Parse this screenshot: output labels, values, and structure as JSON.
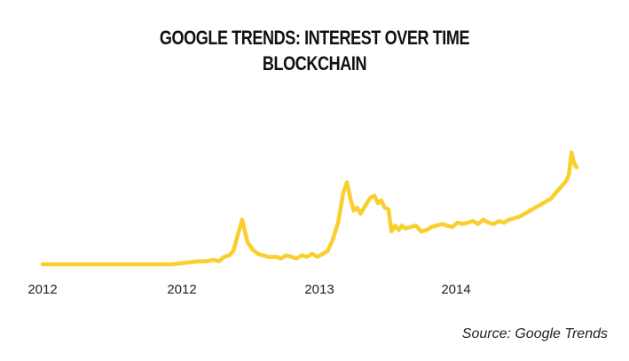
{
  "chart_data": {
    "type": "line",
    "title": "GOOGLE TRENDS: INTEREST OVER TIME",
    "subtitle": "BLOCKCHAIN",
    "source": "Source: Google Trends",
    "x_tick_labels": [
      "2012",
      "2012",
      "2013",
      "2014"
    ],
    "xlim": [
      0,
      100
    ],
    "ylim": [
      0,
      100
    ],
    "grid": false,
    "y_axis_visible": false,
    "series_color": "#F9CF2E",
    "series": [
      {
        "x": [
          0,
          5,
          10,
          15,
          20,
          25,
          30,
          31.5,
          33,
          34,
          35,
          36,
          36.8,
          37.5,
          38.5,
          39.5,
          40.5,
          41.5,
          42.5,
          43.5,
          45,
          46,
          47,
          48,
          49,
          50,
          51,
          52,
          53,
          54,
          55,
          56,
          57,
          58,
          58.7,
          59.3,
          60,
          60.7,
          61.3,
          62,
          62.7,
          63.3,
          64,
          64.7,
          65.3,
          66,
          66.7,
          67.3,
          68,
          68.7,
          69.3,
          70,
          71,
          72,
          73,
          74,
          75,
          76,
          77,
          78,
          79,
          80,
          81,
          82,
          83,
          84,
          85,
          86,
          87,
          88,
          89,
          90,
          91,
          92,
          93,
          94,
          95,
          96,
          97,
          98,
          99,
          100,
          101,
          101.5,
          102,
          102.5,
          103
        ],
        "values": [
          0,
          0,
          0,
          0,
          0,
          0,
          2,
          2,
          3,
          2,
          5,
          6,
          9,
          18,
          30,
          15,
          10,
          7,
          6,
          5,
          5,
          4,
          6,
          5,
          4,
          6,
          5,
          7,
          5,
          7,
          9,
          17,
          28,
          48,
          55,
          45,
          36,
          38,
          34,
          38,
          42,
          45,
          46,
          41,
          43,
          38,
          37,
          22,
          26,
          23,
          26,
          24,
          25,
          26,
          22,
          23,
          25,
          26,
          27,
          26,
          25,
          28,
          27,
          28,
          29,
          27,
          30,
          28,
          27,
          29,
          28,
          30,
          31,
          32,
          34,
          36,
          38,
          40,
          42,
          44,
          48,
          52,
          56,
          60,
          75,
          68,
          65
        ]
      }
    ]
  }
}
